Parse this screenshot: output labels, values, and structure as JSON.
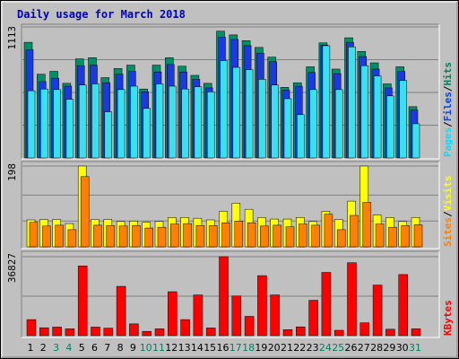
{
  "chart_data": [
    {
      "type": "bar",
      "title": "Daily usage for March 2018",
      "ymax_label": "1113",
      "legend": [
        {
          "label": "Hits",
          "color": "#00805c"
        },
        {
          "sep": "/"
        },
        {
          "label": "Files",
          "color": "#0040ff"
        },
        {
          "sep": "/"
        },
        {
          "label": "Pages",
          "color": "#00e0ff"
        }
      ],
      "series": [
        {
          "name": "Hits",
          "color": "#008f66",
          "values": [
            1015,
            735,
            760,
            655,
            870,
            880,
            705,
            785,
            815,
            605,
            815,
            880,
            805,
            725,
            655,
            1113,
            1080,
            1030,
            970,
            885,
            620,
            660,
            800,
            1010,
            780,
            1055,
            935,
            835,
            650,
            800,
            450
          ]
        },
        {
          "name": "Files",
          "color": "#1a3adf",
          "values": [
            950,
            670,
            700,
            630,
            810,
            815,
            660,
            735,
            760,
            580,
            755,
            820,
            755,
            690,
            615,
            1060,
            1040,
            985,
            920,
            845,
            595,
            630,
            750,
            990,
            740,
            1015,
            890,
            780,
            615,
            760,
            420
          ]
        },
        {
          "name": "Pages",
          "color": "#38e0f0",
          "values": [
            590,
            605,
            600,
            515,
            640,
            650,
            405,
            600,
            630,
            435,
            650,
            630,
            605,
            625,
            580,
            855,
            795,
            775,
            690,
            640,
            520,
            380,
            600,
            985,
            600,
            975,
            810,
            720,
            545,
            680,
            300
          ]
        }
      ],
      "ylim": [
        0,
        1150
      ]
    },
    {
      "type": "bar",
      "ymax_label": "198",
      "legend": [
        {
          "label": "Visits",
          "color": "#ffff00"
        },
        {
          "sep": "/"
        },
        {
          "label": "Sites",
          "color": "#ff8000"
        }
      ],
      "series": [
        {
          "name": "Visits",
          "color": "#ffff00",
          "values": [
            66,
            67,
            67,
            57,
            198,
            67,
            67,
            62,
            63,
            60,
            62,
            72,
            72,
            70,
            66,
            87,
            107,
            92,
            72,
            68,
            68,
            72,
            62,
            87,
            67,
            112,
            198,
            78,
            72,
            62,
            72
          ]
        },
        {
          "name": "Sites",
          "color": "#ff8000",
          "values": [
            60,
            51,
            53,
            42,
            172,
            53,
            52,
            51,
            52,
            46,
            48,
            56,
            57,
            52,
            52,
            59,
            63,
            59,
            51,
            53,
            49,
            56,
            53,
            80,
            42,
            77,
            109,
            56,
            48,
            52,
            54
          ]
        }
      ],
      "ylim": [
        0,
        198
      ]
    },
    {
      "type": "bar",
      "ymax_label": "36827",
      "legend": [
        {
          "label": "KBytes",
          "color": "#ff0000"
        }
      ],
      "series": [
        {
          "name": "KBytes",
          "color": "#ff0000",
          "values": [
            7500,
            3700,
            4000,
            3200,
            32500,
            4000,
            3500,
            23000,
            5500,
            2000,
            3200,
            20500,
            7500,
            19000,
            3600,
            36827,
            18500,
            9000,
            28000,
            19000,
            2800,
            4100,
            16500,
            29500,
            2500,
            34000,
            6000,
            23600,
            3000,
            28500,
            3200
          ]
        }
      ],
      "ylim": [
        0,
        36827
      ]
    }
  ],
  "days": [
    "1",
    "2",
    "3",
    "4",
    "5",
    "6",
    "7",
    "8",
    "9",
    "10",
    "11",
    "12",
    "13",
    "14",
    "15",
    "16",
    "17",
    "18",
    "19",
    "20",
    "21",
    "22",
    "23",
    "24",
    "25",
    "26",
    "27",
    "28",
    "29",
    "30",
    "31"
  ],
  "weekend_days": [
    3,
    4,
    10,
    11,
    17,
    18,
    24,
    25,
    31
  ],
  "colors": {
    "weekday_label": "#000000",
    "weekend_label": "#008060",
    "title": "#0000c0",
    "panel_bg": "#c0c0c0",
    "frame_bg": "#c0c0c0"
  }
}
